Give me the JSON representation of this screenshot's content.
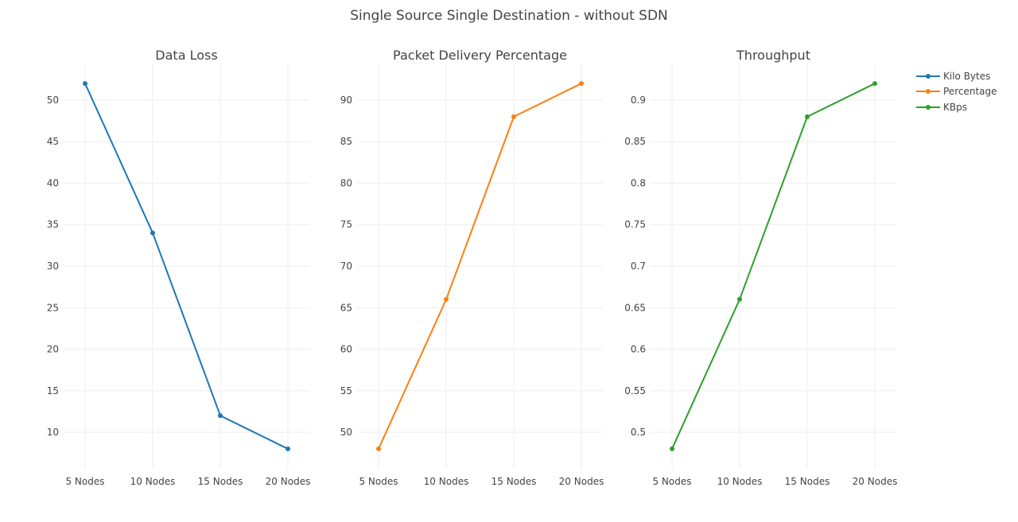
{
  "title": "Single Source Single Destination - without SDN",
  "chart_data": [
    {
      "type": "line",
      "title": "Data Loss",
      "categories": [
        "5 Nodes",
        "10 Nodes",
        "15 Nodes",
        "20 Nodes"
      ],
      "series": [
        {
          "name": "Kilo Bytes",
          "values": [
            52,
            34,
            12,
            8
          ],
          "color": "#1f77b4"
        }
      ],
      "yticks": [
        10,
        15,
        20,
        25,
        30,
        35,
        40,
        45,
        50
      ],
      "ylim": [
        5.6,
        54.4
      ],
      "grid": true,
      "legend": "right"
    },
    {
      "type": "line",
      "title": "Packet Delivery Percentage",
      "categories": [
        "5 Nodes",
        "10 Nodes",
        "15 Nodes",
        "20 Nodes"
      ],
      "series": [
        {
          "name": "Percentage",
          "values": [
            48,
            66,
            88,
            92
          ],
          "color": "#ff7f0e"
        }
      ],
      "yticks": [
        50,
        55,
        60,
        65,
        70,
        75,
        80,
        85,
        90
      ],
      "ylim": [
        45.6,
        94.4
      ],
      "grid": true,
      "legend": "right"
    },
    {
      "type": "line",
      "title": "Throughput",
      "categories": [
        "5 Nodes",
        "10 Nodes",
        "15 Nodes",
        "20 Nodes"
      ],
      "series": [
        {
          "name": "KBps",
          "values": [
            0.48,
            0.66,
            0.88,
            0.92
          ],
          "color": "#2ca02c"
        }
      ],
      "yticks": [
        "0.5",
        "0.55",
        "0.6",
        "0.65",
        "0.7",
        "0.75",
        "0.8",
        "0.85",
        "0.9"
      ],
      "ylim": [
        0.456,
        0.944
      ],
      "grid": true,
      "legend": "right"
    }
  ]
}
